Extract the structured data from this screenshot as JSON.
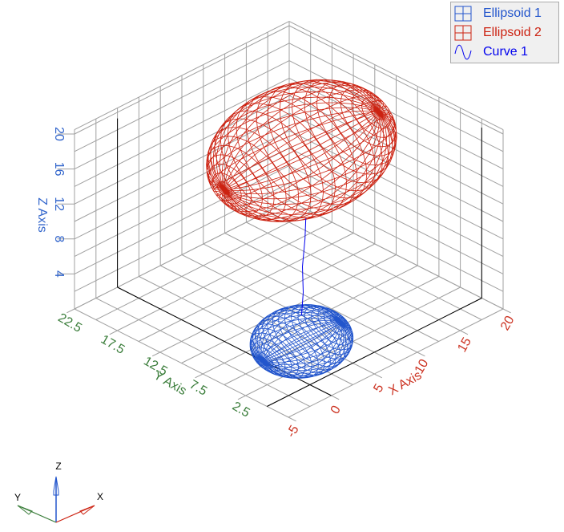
{
  "chart_data": {
    "type": "3d-wireframe",
    "axes": {
      "x": {
        "label": "X Axis",
        "range": [
          -5,
          20
        ],
        "ticks": [
          -5,
          0,
          5,
          10,
          15,
          20
        ],
        "tick_labels": [
          "-5",
          "0",
          "5",
          "10",
          "15",
          "20"
        ],
        "color": "#cc3322"
      },
      "y": {
        "label": "Y Axis",
        "range": [
          -2.5,
          22.5
        ],
        "ticks": [
          2.5,
          7.5,
          12.5,
          17.5,
          22.5
        ],
        "tick_labels": [
          "2.5",
          "7.5",
          "12.5",
          "17.5",
          "22.5"
        ],
        "color": "#3a7d3a"
      },
      "z": {
        "label": "Z Axis",
        "range": [
          0,
          20.5
        ],
        "ticks": [
          4,
          8,
          12,
          16,
          20
        ],
        "tick_labels": [
          "4",
          "8",
          "12",
          "16",
          "20"
        ],
        "color": "#3366cc"
      }
    },
    "grid": true,
    "legend_position": "top-right",
    "series": [
      {
        "name": "Ellipsoid 1",
        "type": "ellipsoid",
        "color": "#2255cc",
        "center": [
          4,
          5,
          0.5
        ],
        "radii": [
          4.5,
          4,
          3
        ]
      },
      {
        "name": "Ellipsoid 2",
        "type": "ellipsoid",
        "color": "#cc2211",
        "center": [
          4,
          5,
          22.3
        ],
        "radii": [
          9,
          6.5,
          6
        ]
      },
      {
        "name": "Curve 1",
        "type": "line",
        "color": "#0000ee",
        "x": [
          4,
          4.2,
          4.1,
          4.4,
          4.5
        ],
        "y": [
          5,
          5,
          5,
          5,
          5
        ],
        "z": [
          3.5,
          6,
          9,
          12,
          14.3
        ]
      }
    ]
  },
  "legend": [
    {
      "label": "Ellipsoid 1",
      "icon": "grid-icon",
      "color": "#2255cc"
    },
    {
      "label": "Ellipsoid 2",
      "icon": "grid-icon",
      "color": "#cc2211"
    },
    {
      "label": "Curve 1",
      "icon": "sine-wave-icon",
      "color": "#0000ee"
    }
  ],
  "triad": {
    "x": "X",
    "y": "Y",
    "z": "Z"
  }
}
